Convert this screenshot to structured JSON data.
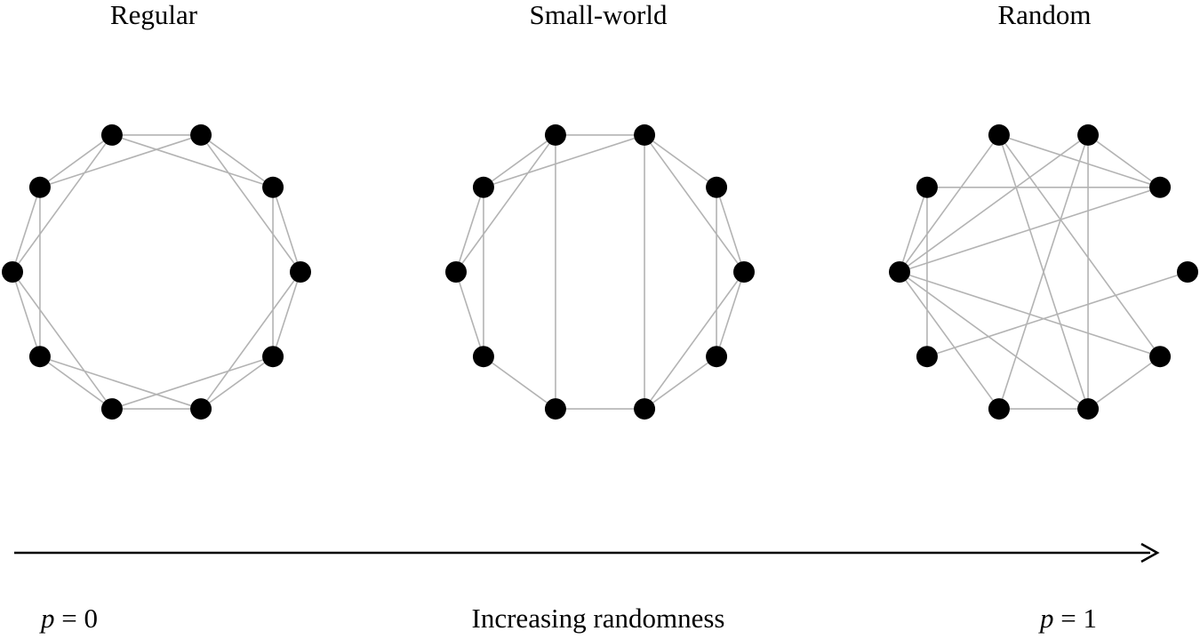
{
  "titles": {
    "regular": "Regular",
    "small_world": "Small-world",
    "random": "Random"
  },
  "axis": {
    "left_symbol": "p",
    "left_rest": " = 0",
    "middle": "Increasing randomness",
    "right_symbol": "p",
    "right_rest": " = 1"
  },
  "colors": {
    "node": "#000000",
    "edge": "#b3b3b3",
    "arrow": "#000000"
  },
  "graphs": [
    {
      "id": "regular",
      "node_count": 10,
      "edges": [
        [
          0,
          1
        ],
        [
          1,
          2
        ],
        [
          2,
          3
        ],
        [
          3,
          4
        ],
        [
          4,
          5
        ],
        [
          5,
          6
        ],
        [
          6,
          7
        ],
        [
          7,
          8
        ],
        [
          8,
          9
        ],
        [
          9,
          0
        ],
        [
          0,
          2
        ],
        [
          1,
          3
        ],
        [
          2,
          4
        ],
        [
          3,
          5
        ],
        [
          4,
          6
        ],
        [
          5,
          7
        ],
        [
          6,
          8
        ],
        [
          7,
          9
        ],
        [
          8,
          0
        ],
        [
          9,
          1
        ]
      ]
    },
    {
      "id": "small_world",
      "node_count": 10,
      "edges": [
        [
          0,
          1
        ],
        [
          1,
          2
        ],
        [
          2,
          3
        ],
        [
          3,
          4
        ],
        [
          4,
          5
        ],
        [
          5,
          6
        ],
        [
          6,
          7
        ],
        [
          7,
          8
        ],
        [
          8,
          9
        ],
        [
          9,
          0
        ],
        [
          1,
          3
        ],
        [
          2,
          4
        ],
        [
          5,
          3
        ],
        [
          7,
          9
        ],
        [
          8,
          0
        ],
        [
          9,
          1
        ],
        [
          0,
          6
        ],
        [
          1,
          5
        ]
      ]
    },
    {
      "id": "random",
      "node_count": 10,
      "edges": [
        [
          8,
          2
        ],
        [
          8,
          1
        ],
        [
          8,
          0
        ],
        [
          8,
          9
        ],
        [
          8,
          6
        ],
        [
          8,
          4
        ],
        [
          8,
          5
        ],
        [
          9,
          2
        ],
        [
          9,
          7
        ],
        [
          0,
          2
        ],
        [
          0,
          4
        ],
        [
          0,
          5
        ],
        [
          1,
          5
        ],
        [
          1,
          6
        ],
        [
          1,
          2
        ],
        [
          3,
          7
        ],
        [
          5,
          4
        ],
        [
          6,
          5
        ]
      ]
    }
  ]
}
